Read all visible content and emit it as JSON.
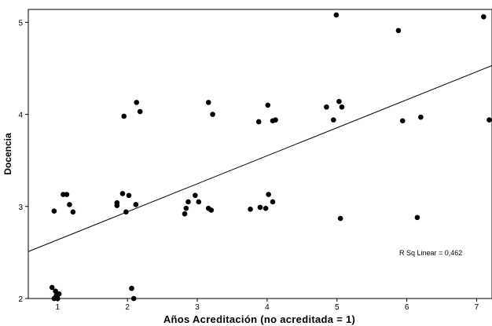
{
  "chart_data": {
    "type": "scatter",
    "xlabel": "Años Acreditación (no acreditada = 1)",
    "ylabel": "Docencia",
    "xticks": [
      1,
      2,
      3,
      4,
      5,
      6,
      7
    ],
    "yticks": [
      2,
      3,
      4,
      5
    ],
    "xlim": [
      0.58,
      7.22
    ],
    "ylim": [
      2.0,
      5.14
    ],
    "grid": false,
    "annotation": "R Sq Linear = 0,462",
    "regression": {
      "x": [
        0.58,
        7.22
      ],
      "y": [
        2.51,
        4.53
      ]
    },
    "points": [
      {
        "x": 0.92,
        "y": 2.12
      },
      {
        "x": 0.97,
        "y": 2.08
      },
      {
        "x": 1.02,
        "y": 2.05
      },
      {
        "x": 0.98,
        "y": 2.03
      },
      {
        "x": 0.95,
        "y": 2.0
      },
      {
        "x": 1.0,
        "y": 2.0
      },
      {
        "x": 0.95,
        "y": 2.95
      },
      {
        "x": 1.08,
        "y": 3.13
      },
      {
        "x": 1.13,
        "y": 3.13
      },
      {
        "x": 1.17,
        "y": 3.02
      },
      {
        "x": 1.22,
        "y": 2.94
      },
      {
        "x": 1.85,
        "y": 3.04
      },
      {
        "x": 1.85,
        "y": 3.01
      },
      {
        "x": 1.93,
        "y": 3.14
      },
      {
        "x": 1.98,
        "y": 2.94
      },
      {
        "x": 2.02,
        "y": 3.12
      },
      {
        "x": 2.12,
        "y": 3.02
      },
      {
        "x": 1.95,
        "y": 3.98
      },
      {
        "x": 2.13,
        "y": 4.13
      },
      {
        "x": 2.18,
        "y": 4.03
      },
      {
        "x": 2.06,
        "y": 2.11
      },
      {
        "x": 2.09,
        "y": 2.0
      },
      {
        "x": 2.82,
        "y": 2.92
      },
      {
        "x": 2.84,
        "y": 2.98
      },
      {
        "x": 2.87,
        "y": 3.05
      },
      {
        "x": 2.97,
        "y": 3.12
      },
      {
        "x": 3.02,
        "y": 3.05
      },
      {
        "x": 3.16,
        "y": 2.98
      },
      {
        "x": 3.2,
        "y": 2.96
      },
      {
        "x": 3.16,
        "y": 4.13
      },
      {
        "x": 3.22,
        "y": 4.0
      },
      {
        "x": 3.76,
        "y": 2.97
      },
      {
        "x": 3.9,
        "y": 2.99
      },
      {
        "x": 3.98,
        "y": 2.98
      },
      {
        "x": 4.02,
        "y": 3.13
      },
      {
        "x": 4.08,
        "y": 3.05
      },
      {
        "x": 3.88,
        "y": 3.92
      },
      {
        "x": 4.01,
        "y": 4.1
      },
      {
        "x": 4.08,
        "y": 3.93
      },
      {
        "x": 4.12,
        "y": 3.94
      },
      {
        "x": 4.85,
        "y": 4.08
      },
      {
        "x": 4.95,
        "y": 3.94
      },
      {
        "x": 5.03,
        "y": 4.14
      },
      {
        "x": 5.07,
        "y": 4.08
      },
      {
        "x": 4.99,
        "y": 5.08
      },
      {
        "x": 5.05,
        "y": 2.87
      },
      {
        "x": 5.88,
        "y": 4.91
      },
      {
        "x": 5.94,
        "y": 3.93
      },
      {
        "x": 6.15,
        "y": 2.88
      },
      {
        "x": 6.2,
        "y": 3.97
      },
      {
        "x": 7.1,
        "y": 5.06
      },
      {
        "x": 7.18,
        "y": 3.94
      }
    ]
  }
}
